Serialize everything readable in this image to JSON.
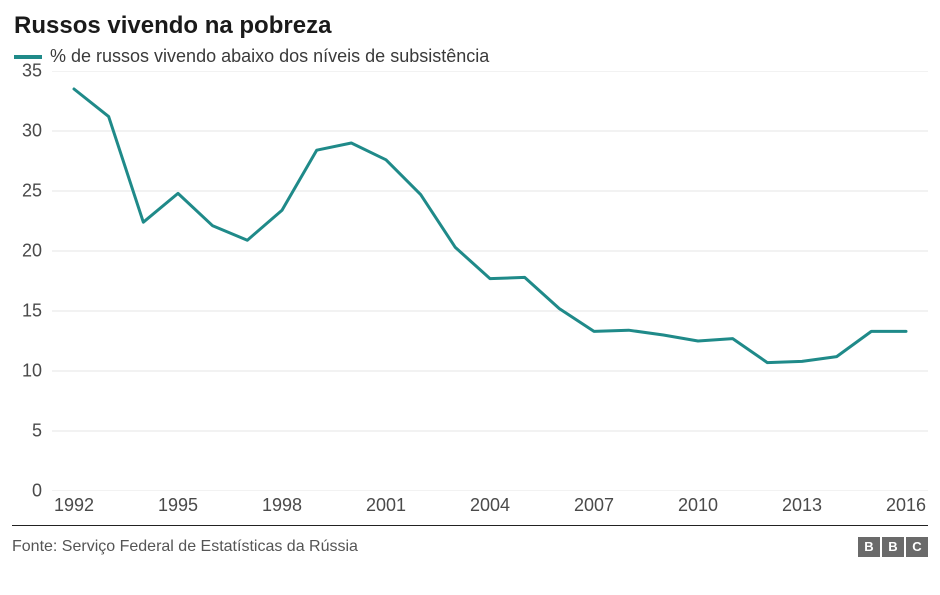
{
  "title": "Russos vivendo na pobreza",
  "legend": {
    "label": "% de russos vivendo abaixo dos níveis de subsistência",
    "color": "#1f8a89"
  },
  "chart": {
    "type": "line",
    "xlim": [
      1992,
      2016
    ],
    "ylim": [
      0,
      35
    ],
    "ytick_step": 5,
    "xtick_step": 3,
    "yticks": [
      0,
      5,
      10,
      15,
      20,
      25,
      30,
      35
    ],
    "xticks": [
      1992,
      1995,
      1998,
      2001,
      2004,
      2007,
      2010,
      2013,
      2016
    ],
    "grid_color": "#e5e5e5",
    "background_color": "#ffffff",
    "line_color": "#1f8a89",
    "line_width": 3,
    "label_fontsize": 18,
    "label_color": "#4a4a4a",
    "title_fontsize": 24,
    "data": {
      "x": [
        1992,
        1993,
        1994,
        1995,
        1996,
        1997,
        1998,
        1999,
        2000,
        2001,
        2002,
        2003,
        2004,
        2005,
        2006,
        2007,
        2008,
        2009,
        2010,
        2011,
        2012,
        2013,
        2014,
        2015,
        2016
      ],
      "y": [
        33.5,
        31.2,
        22.4,
        24.8,
        22.1,
        20.9,
        23.4,
        28.4,
        29.0,
        27.6,
        24.7,
        20.3,
        17.7,
        17.8,
        15.2,
        13.3,
        13.4,
        13.0,
        12.5,
        12.7,
        10.7,
        10.8,
        11.2,
        13.3,
        13.3
      ]
    }
  },
  "footer": {
    "source": "Fonte: Serviço Federal de Estatísticas da Rússia",
    "logo_letters": [
      "B",
      "B",
      "C"
    ],
    "logo_bg": "#6a6a6a",
    "logo_fg": "#ffffff",
    "border_color": "#222222"
  }
}
